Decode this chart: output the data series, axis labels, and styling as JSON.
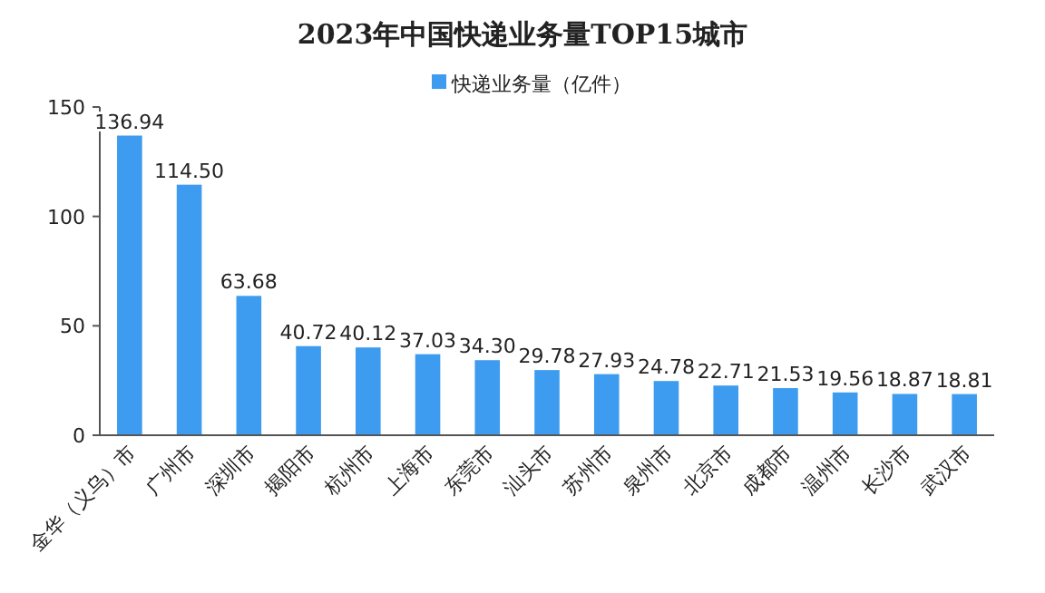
{
  "chart_data": {
    "type": "bar",
    "title": "2023年中国快递业务量TOP15城市",
    "categories": [
      "金华（义乌）市",
      "广州市",
      "深圳市",
      "揭阳市",
      "杭州市",
      "上海市",
      "东莞市",
      "汕头市",
      "苏州市",
      "泉州市",
      "北京市",
      "成都市",
      "温州市",
      "长沙市",
      "武汉市"
    ],
    "series": [
      {
        "name": "快递业务量（亿件）",
        "color": "#3d9cf0",
        "values": [
          136.94,
          114.5,
          63.68,
          40.72,
          40.12,
          37.03,
          34.3,
          29.78,
          27.93,
          24.78,
          22.71,
          21.53,
          19.56,
          18.87,
          18.81
        ],
        "value_labels": [
          "136.94",
          "114.50",
          "63.68",
          "40.72",
          "40.12",
          "37.03",
          "34.30",
          "29.78",
          "27.93",
          "24.78",
          "22.71",
          "21.53",
          "19.56",
          "18.87",
          "18.81"
        ]
      }
    ],
    "ylim": [
      0,
      150
    ],
    "yticks": [
      0,
      50,
      100,
      150
    ],
    "legend": "top",
    "grid": false
  }
}
